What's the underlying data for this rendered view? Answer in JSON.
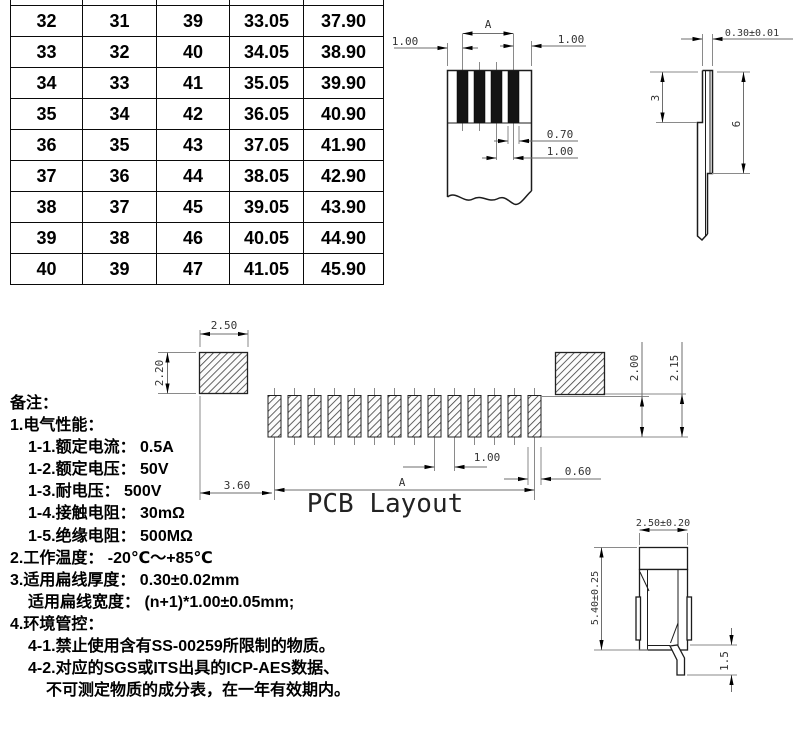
{
  "table": {
    "rows": [
      [
        "32",
        "31",
        "39",
        "33.05",
        "37.90"
      ],
      [
        "33",
        "32",
        "40",
        "34.05",
        "38.90"
      ],
      [
        "34",
        "33",
        "41",
        "35.05",
        "39.90"
      ],
      [
        "35",
        "34",
        "42",
        "36.05",
        "40.90"
      ],
      [
        "36",
        "35",
        "43",
        "37.05",
        "41.90"
      ],
      [
        "37",
        "36",
        "44",
        "38.05",
        "42.90"
      ],
      [
        "38",
        "37",
        "45",
        "39.05",
        "43.90"
      ],
      [
        "39",
        "38",
        "46",
        "40.05",
        "44.90"
      ],
      [
        "40",
        "39",
        "47",
        "41.05",
        "45.90"
      ]
    ]
  },
  "cable_front": {
    "conductor_count": 4,
    "dim_span": "A",
    "dim_left_margin": "1.00",
    "dim_right_margin": "1.00",
    "dim_conductor_width": "0.70",
    "dim_pitch": "1.00"
  },
  "cable_side": {
    "dim_thickness": "0.30±0.01",
    "dim_exposed_length": "3",
    "dim_stiffener_length": "6"
  },
  "pcb_layout": {
    "title": "PCB Layout",
    "pad_count": 14,
    "dim_anchor_width": "2.50",
    "dim_anchor_height": "2.20",
    "dim_pad_height": "2.00",
    "dim_row_height": "2.15",
    "dim_anchor_to_pad": "3.60",
    "dim_span": "A",
    "dim_pitch": "1.00",
    "dim_pad_width": "0.60"
  },
  "connector_side": {
    "dim_width": "2.50±0.20",
    "dim_height": "5.40±0.25",
    "dim_foot": "1.5"
  },
  "notes": {
    "lines": [
      {
        "text": "备注：",
        "indent": 0
      },
      {
        "text": "1.电气性能：",
        "indent": 0
      },
      {
        "text": "1-1.额定电流： 0.5A",
        "indent": 1
      },
      {
        "text": "1-2.额定电压： 50V",
        "indent": 1
      },
      {
        "text": "1-3.耐电压： 500V",
        "indent": 1
      },
      {
        "text": "1-4.接触电阻： 30mΩ",
        "indent": 1
      },
      {
        "text": "1-5.绝缘电阻： 500MΩ",
        "indent": 1
      },
      {
        "text": "2.工作温度： -20℃～+85℃",
        "indent": 0
      },
      {
        "text": "3.适用扁线厚度： 0.30±0.02mm",
        "indent": 0
      },
      {
        "text": "适用扁线宽度： (n+1)*1.00±0.05mm;",
        "indent": 1
      },
      {
        "text": "4.环境管控：",
        "indent": 0
      },
      {
        "text": "4-1.禁止使用含有SS-00259所限制的物质。",
        "indent": 1
      },
      {
        "text": "4-2.对应的SGS或ITS出具的ICP-AES数据、",
        "indent": 1
      },
      {
        "text": "不可测定物质的成分表，在一年有效期内。",
        "indent": 2
      }
    ]
  }
}
